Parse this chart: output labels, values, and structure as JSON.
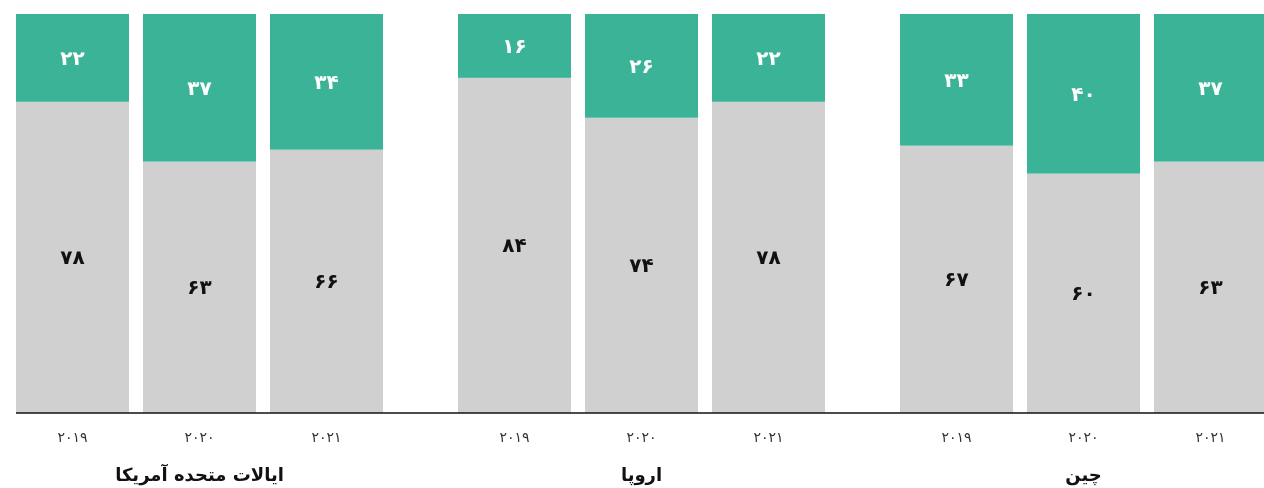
{
  "chart_data": {
    "type": "bar",
    "stacked": true,
    "categories": [
      "۲۰۱۹",
      "۲۰۲۰",
      "۲۰۲۱",
      "۲۰۱۹",
      "۲۰۲۰",
      "۲۰۲۱",
      "۲۰۱۹",
      "۲۰۲۰",
      "۲۰۲۱"
    ],
    "ylim": [
      0,
      100
    ],
    "tick_labels": "x",
    "series": [
      {
        "color": "#d0d0d0",
        "values": [
          78,
          63,
          66,
          84,
          74,
          78,
          67,
          60,
          63
        ],
        "value_labels": [
          "۷۸",
          "۶۳",
          "۶۶",
          "۸۴",
          "۷۴",
          "۷۸",
          "۶۷",
          "۶۰",
          "۶۳"
        ]
      },
      {
        "color": "#3bb397",
        "values": [
          22,
          37,
          34,
          16,
          26,
          22,
          33,
          40,
          37
        ],
        "value_labels": [
          "۲۲",
          "۳۷",
          "۳۴",
          "۱۶",
          "۲۶",
          "۲۲",
          "۳۳",
          "۴۰",
          "۳۷"
        ]
      }
    ],
    "annotations": [
      "ایالات متحده آمریکا",
      "اروپا",
      "چین"
    ]
  }
}
